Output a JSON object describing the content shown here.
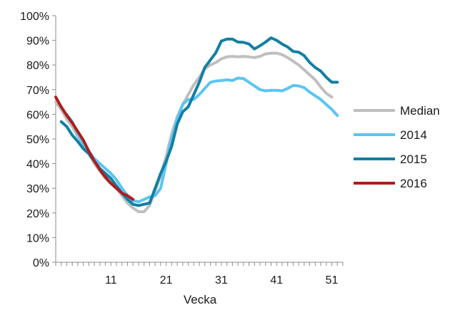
{
  "chart_data": {
    "type": "line",
    "title": "",
    "xlabel": "Vecka",
    "ylabel": "",
    "xlim": [
      1,
      53
    ],
    "ylim": [
      0,
      100
    ],
    "x_ticks": [
      11,
      21,
      31,
      41,
      51
    ],
    "y_ticks": [
      0,
      10,
      20,
      30,
      40,
      50,
      60,
      70,
      80,
      90,
      100
    ],
    "y_tick_suffix": "%",
    "grid": false,
    "legend_position": "right",
    "series": [
      {
        "name": "Median",
        "color": "#bfbfbf",
        "points": [
          [
            1,
            65
          ],
          [
            2,
            62
          ],
          [
            3,
            58
          ],
          [
            4,
            55
          ],
          [
            5,
            51
          ],
          [
            6,
            48
          ],
          [
            7,
            44
          ],
          [
            8,
            40
          ],
          [
            9,
            37
          ],
          [
            10,
            34
          ],
          [
            11,
            32
          ],
          [
            12,
            30
          ],
          [
            13,
            27
          ],
          [
            14,
            24
          ],
          [
            15,
            22
          ],
          [
            16,
            20.5
          ],
          [
            17,
            20.5
          ],
          [
            18,
            23
          ],
          [
            19,
            29
          ],
          [
            20,
            35
          ],
          [
            21,
            43
          ],
          [
            22,
            52
          ],
          [
            23,
            59
          ],
          [
            24,
            64
          ],
          [
            25,
            68
          ],
          [
            26,
            72
          ],
          [
            27,
            75
          ],
          [
            28,
            78.5
          ],
          [
            29,
            80
          ],
          [
            30,
            81
          ],
          [
            31,
            82.5
          ],
          [
            32,
            83.3
          ],
          [
            33,
            83.5
          ],
          [
            34,
            83.3
          ],
          [
            35,
            83.5
          ],
          [
            36,
            83.3
          ],
          [
            37,
            83
          ],
          [
            38,
            83.5
          ],
          [
            39,
            84.5
          ],
          [
            40,
            84.8
          ],
          [
            41,
            84.8
          ],
          [
            42,
            84.2
          ],
          [
            43,
            83
          ],
          [
            44,
            81.5
          ],
          [
            45,
            80
          ],
          [
            46,
            78
          ],
          [
            47,
            76
          ],
          [
            48,
            74
          ],
          [
            49,
            71
          ],
          [
            50,
            68.5
          ],
          [
            51,
            67
          ]
        ]
      },
      {
        "name": "2014",
        "color": "#5bc5f2",
        "points": [
          [
            3,
            60
          ],
          [
            4,
            57
          ],
          [
            5,
            52
          ],
          [
            6,
            48
          ],
          [
            7,
            45
          ],
          [
            8,
            42
          ],
          [
            9,
            40
          ],
          [
            10,
            38
          ],
          [
            11,
            36
          ],
          [
            12,
            33.5
          ],
          [
            13,
            30
          ],
          [
            14,
            27
          ],
          [
            15,
            25
          ],
          [
            16,
            24.5
          ],
          [
            17,
            25.5
          ],
          [
            18,
            26.5
          ],
          [
            19,
            27
          ],
          [
            20,
            30
          ],
          [
            21,
            40
          ],
          [
            22,
            50
          ],
          [
            23,
            58
          ],
          [
            24,
            64
          ],
          [
            25,
            66
          ],
          [
            26,
            66
          ],
          [
            27,
            68
          ],
          [
            28,
            70.5
          ],
          [
            29,
            73
          ],
          [
            30,
            73.5
          ],
          [
            31,
            73.7
          ],
          [
            32,
            74
          ],
          [
            33,
            73.7
          ],
          [
            34,
            74.7
          ],
          [
            35,
            74.5
          ],
          [
            36,
            73
          ],
          [
            37,
            71.5
          ],
          [
            38,
            70
          ],
          [
            39,
            69.5
          ],
          [
            40,
            69.7
          ],
          [
            41,
            69.7
          ],
          [
            42,
            69.5
          ],
          [
            43,
            70.5
          ],
          [
            44,
            71.7
          ],
          [
            45,
            71.5
          ],
          [
            46,
            70.8
          ],
          [
            47,
            69
          ],
          [
            48,
            67.5
          ],
          [
            49,
            66
          ],
          [
            50,
            64
          ],
          [
            51,
            62
          ],
          [
            52,
            59.5
          ]
        ]
      },
      {
        "name": "2015",
        "color": "#127fa3",
        "points": [
          [
            2,
            57
          ],
          [
            3,
            55
          ],
          [
            4,
            51.5
          ],
          [
            5,
            49
          ],
          [
            6,
            46
          ],
          [
            7,
            44
          ],
          [
            8,
            41
          ],
          [
            9,
            38
          ],
          [
            10,
            36
          ],
          [
            11,
            34
          ],
          [
            12,
            31
          ],
          [
            13,
            28
          ],
          [
            14,
            25.5
          ],
          [
            15,
            23.5
          ],
          [
            16,
            23
          ],
          [
            17,
            23.5
          ],
          [
            18,
            24
          ],
          [
            19,
            30
          ],
          [
            20,
            36
          ],
          [
            21,
            41
          ],
          [
            22,
            47
          ],
          [
            23,
            56
          ],
          [
            24,
            61
          ],
          [
            25,
            63
          ],
          [
            26,
            68
          ],
          [
            27,
            73
          ],
          [
            28,
            79
          ],
          [
            29,
            82
          ],
          [
            30,
            85
          ],
          [
            31,
            89.7
          ],
          [
            32,
            90.5
          ],
          [
            33,
            90.5
          ],
          [
            34,
            89.3
          ],
          [
            35,
            89.2
          ],
          [
            36,
            88.5
          ],
          [
            37,
            86.5
          ],
          [
            38,
            87.8
          ],
          [
            39,
            89.3
          ],
          [
            40,
            91
          ],
          [
            41,
            90
          ],
          [
            42,
            88.5
          ],
          [
            43,
            87.3
          ],
          [
            44,
            85.5
          ],
          [
            45,
            85.2
          ],
          [
            46,
            83.8
          ],
          [
            47,
            81
          ],
          [
            48,
            79
          ],
          [
            49,
            77.5
          ],
          [
            50,
            75
          ],
          [
            51,
            73
          ],
          [
            52,
            73
          ]
        ]
      },
      {
        "name": "2016",
        "color": "#b01c1c",
        "points": [
          [
            1,
            67
          ],
          [
            2,
            63
          ],
          [
            3,
            59.5
          ],
          [
            4,
            56.5
          ],
          [
            5,
            53
          ],
          [
            6,
            49.5
          ],
          [
            7,
            45
          ],
          [
            8,
            41
          ],
          [
            9,
            37.5
          ],
          [
            10,
            34.5
          ],
          [
            11,
            32
          ],
          [
            12,
            30
          ],
          [
            13,
            28
          ],
          [
            14,
            27
          ],
          [
            15,
            25.5
          ]
        ]
      }
    ]
  }
}
